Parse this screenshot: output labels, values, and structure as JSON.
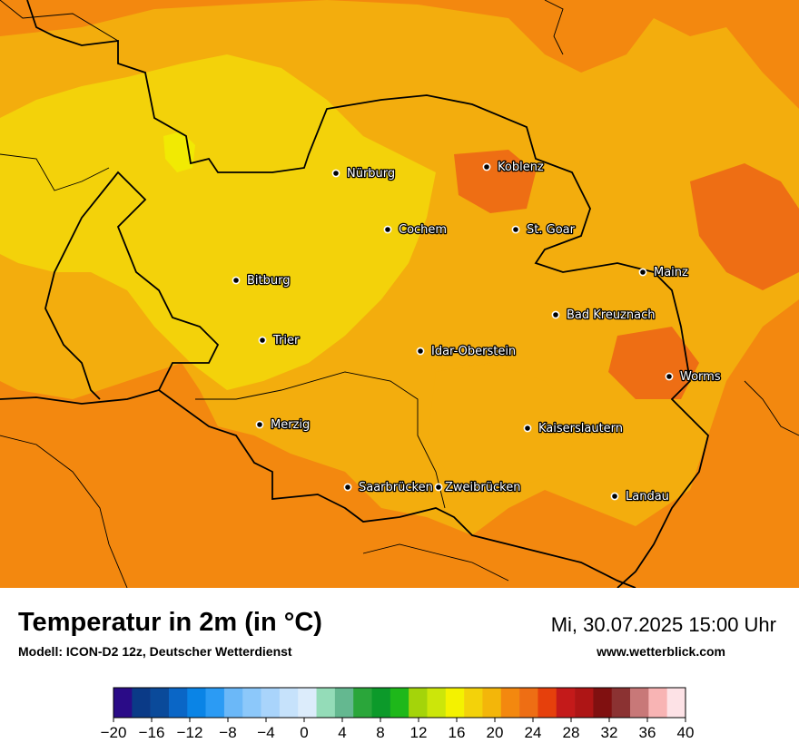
{
  "map": {
    "colors": {
      "orange": "#f3880f",
      "amber": "#f3ad0d",
      "yellow": "#f3d20a",
      "lightyellow": "#f1ea03",
      "dark": "#ee6e14"
    },
    "cities": [
      {
        "name": "Nürburg"
      },
      {
        "name": "Koblenz"
      },
      {
        "name": "Cochem"
      },
      {
        "name": "St. Goar"
      },
      {
        "name": "Mainz"
      },
      {
        "name": "Bitburg"
      },
      {
        "name": "Bad Kreuznach"
      },
      {
        "name": "Trier"
      },
      {
        "name": "Idar-Oberstein"
      },
      {
        "name": "Worms"
      },
      {
        "name": "Merzig"
      },
      {
        "name": "Kaiserslautern"
      },
      {
        "name": "Saarbrücken"
      },
      {
        "name": "Zweibrücken"
      },
      {
        "name": "Landau"
      }
    ]
  },
  "footer": {
    "title": "Temperatur in 2m (in °C)",
    "model": "Modell: ICON-D2 12z, Deutscher Wetterdienst",
    "datetime": "Mi, 30.07.2025 15:00 Uhr",
    "source": "www.wetterblick.com"
  },
  "legend": {
    "min": -20,
    "max": 40,
    "step": 2,
    "colors": [
      "#2a0b87",
      "#0a3a87",
      "#0a4a9a",
      "#0a66c6",
      "#0a84e6",
      "#2b9bf4",
      "#6bb8f8",
      "#8cc8fa",
      "#a9d4fb",
      "#c6e2fb",
      "#dcecfb",
      "#94dcb8",
      "#64b890",
      "#2aa63a",
      "#0c9a2a",
      "#1eb81a",
      "#a4d40a",
      "#cce60a",
      "#f4f200",
      "#f3d20a",
      "#f3b60a",
      "#f3880f",
      "#ee6e14",
      "#e6400c",
      "#c41a1a",
      "#ae1515",
      "#801010",
      "#8b3232",
      "#c87878",
      "#f8b4b4",
      "#fde2e6"
    ],
    "ticks": [
      "−20",
      "−16",
      "−12",
      "−8",
      "−4",
      "0",
      "4",
      "8",
      "12",
      "16",
      "20",
      "24",
      "28",
      "32",
      "36",
      "40"
    ]
  }
}
